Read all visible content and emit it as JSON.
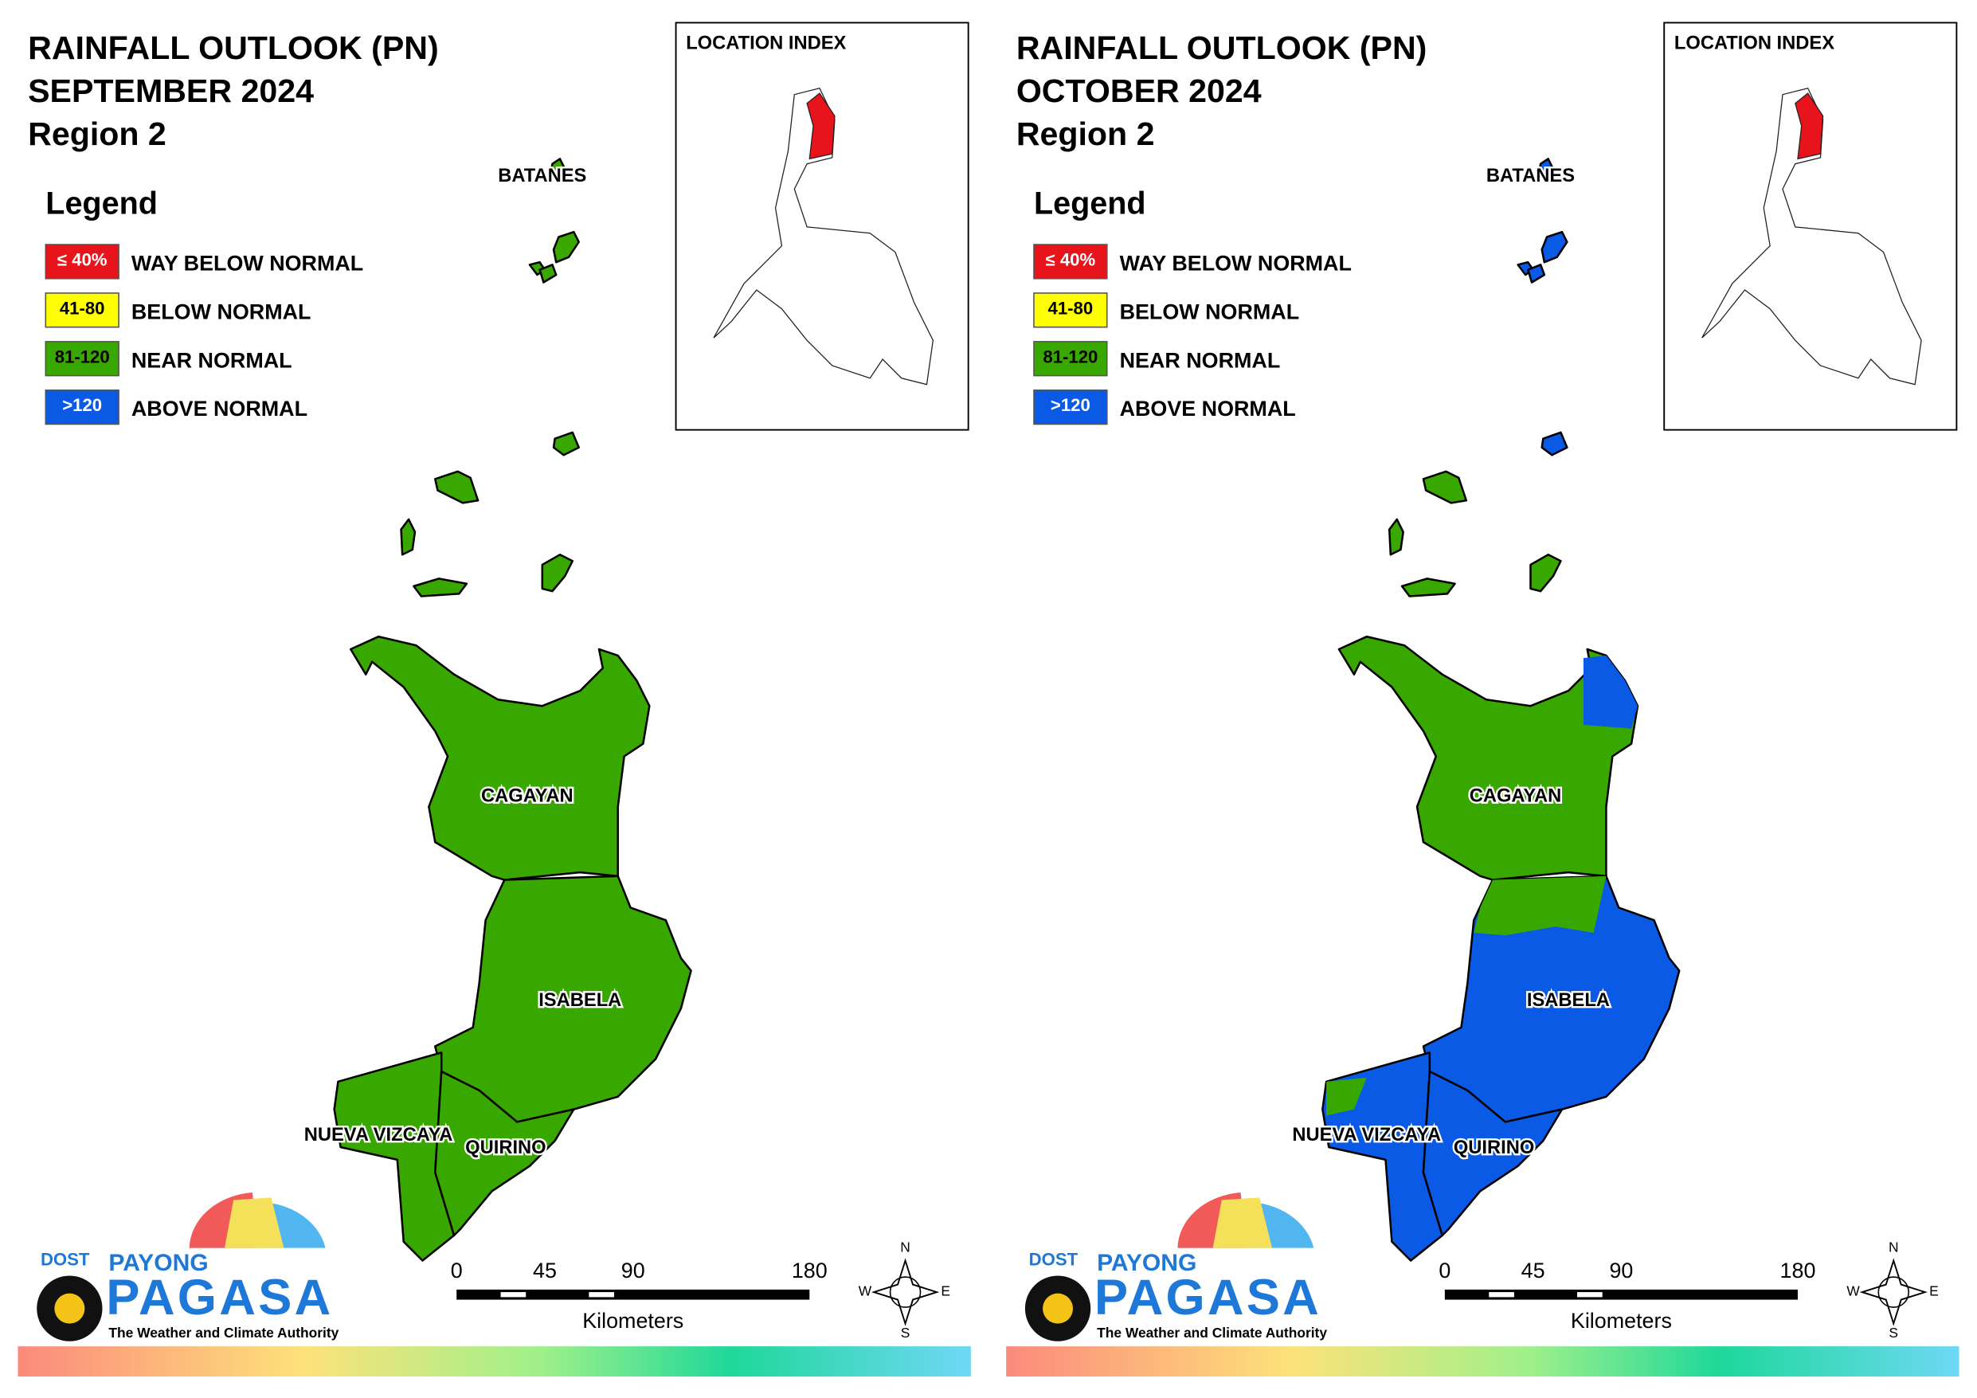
{
  "panels": [
    {
      "title": [
        "RAINFALL OUTLOOK (PN)",
        "SEPTEMBER 2024",
        "Region 2"
      ],
      "legend_title": "Legend",
      "legend": [
        {
          "swatch": "≤ 40%",
          "label": "WAY BELOW NORMAL",
          "color": "#e8141b"
        },
        {
          "swatch": "41-80",
          "label": "BELOW NORMAL",
          "color": "#ffff00"
        },
        {
          "swatch": "81-120",
          "label": "NEAR NORMAL",
          "color": "#38a800"
        },
        {
          "swatch": ">120",
          "label": "ABOVE NORMAL",
          "color": "#0a5ae6"
        }
      ],
      "location_index": "LOCATION INDEX",
      "provinces": [
        "BATANES",
        "CAGAYAN",
        "ISABELA",
        "NUEVA VIZCAYA",
        "QUIRINO"
      ],
      "scale": {
        "ticks": [
          0,
          45,
          90,
          180
        ],
        "unit": "Kilometers"
      },
      "compass": [
        "N",
        "E",
        "S",
        "W"
      ],
      "logo": {
        "agency": "DOST",
        "brand_top": "PAYONG",
        "brand": "PAGASA",
        "tagline": "The Weather and Climate Authority"
      }
    },
    {
      "title": [
        "RAINFALL OUTLOOK (PN)",
        "OCTOBER 2024",
        "Region 2"
      ],
      "legend_title": "Legend",
      "legend": [
        {
          "swatch": "≤ 40%",
          "label": "WAY BELOW NORMAL",
          "color": "#e8141b"
        },
        {
          "swatch": "41-80",
          "label": "BELOW NORMAL",
          "color": "#ffff00"
        },
        {
          "swatch": "81-120",
          "label": "NEAR NORMAL",
          "color": "#38a800"
        },
        {
          "swatch": ">120",
          "label": "ABOVE NORMAL",
          "color": "#0a5ae6"
        }
      ],
      "location_index": "LOCATION INDEX",
      "provinces": [
        "BATANES",
        "CAGAYAN",
        "ISABELA",
        "NUEVA VIZCAYA",
        "QUIRINO"
      ],
      "scale": {
        "ticks": [
          0,
          45,
          90,
          180
        ],
        "unit": "Kilometers"
      },
      "compass": [
        "N",
        "E",
        "S",
        "W"
      ],
      "logo": {
        "agency": "DOST",
        "brand_top": "PAYONG",
        "brand": "PAGASA",
        "tagline": "The Weather and Climate Authority"
      }
    }
  ]
}
